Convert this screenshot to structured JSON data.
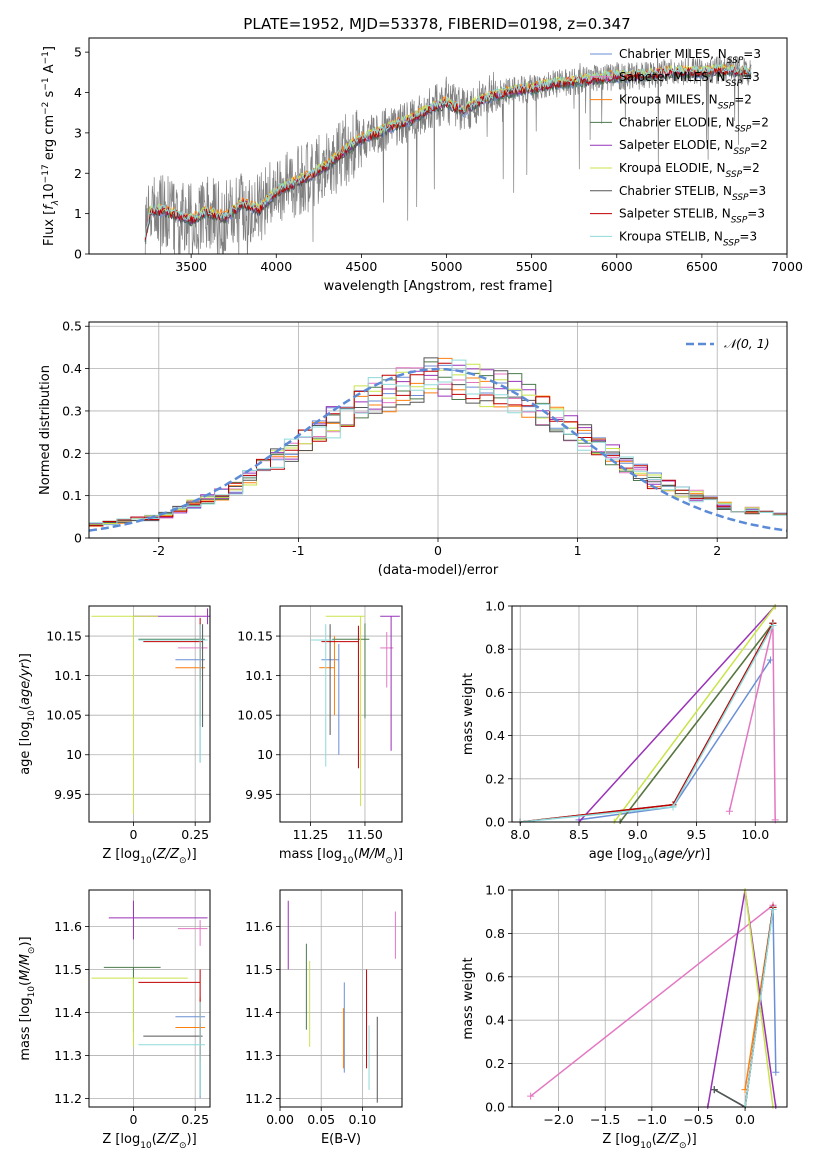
{
  "figure_title": "PLATE=1952, MJD=53378, FIBERID=0198, z=0.347",
  "colors": {
    "chabrier_miles": "#6a8fd6",
    "salpeter_miles": "#e377c2",
    "kroupa_miles": "#ff7f0e",
    "chabrier_elodie": "#4c7a4c",
    "salpeter_elodie": "#9932b8",
    "kroupa_elodie": "#c9e44a",
    "chabrier_stelib": "#555555",
    "salpeter_stelib": "#c00000",
    "kroupa_stelib": "#8fdada",
    "data": "#808080",
    "normal": "#5b8bd6"
  },
  "chart_data": [
    {
      "id": "spectrum",
      "type": "line",
      "title": "PLATE=1952, MJD=53378, FIBERID=0198, z=0.347",
      "xlabel": "wavelength [Angstrom, rest frame]",
      "ylabel": "Flux [f_λ 10^-17 erg cm^-2 s^-1 A^-1]",
      "xlim": [
        2900,
        7000
      ],
      "ylim": [
        0,
        5.35
      ],
      "xticks": [
        3500,
        4000,
        4500,
        5000,
        5500,
        6000,
        6500,
        7000
      ],
      "yticks": [
        0,
        1,
        2,
        3,
        4,
        5
      ],
      "legend": {
        "placement": "upper right",
        "entries": [
          {
            "base": "Chabrier MILES, N",
            "sub": "SSP",
            "suffix": "=3",
            "color_key": "chabrier_miles"
          },
          {
            "base": "Salpeter MILES, N",
            "sub": "SSP",
            "suffix": "=3",
            "color_key": "salpeter_miles"
          },
          {
            "base": "Kroupa MILES, N",
            "sub": "SSP",
            "suffix": "=2",
            "color_key": "kroupa_miles"
          },
          {
            "base": "Chabrier ELODIE, N",
            "sub": "SSP",
            "suffix": "=2",
            "color_key": "chabrier_elodie"
          },
          {
            "base": "Salpeter ELODIE, N",
            "sub": "SSP",
            "suffix": "=2",
            "color_key": "salpeter_elodie"
          },
          {
            "base": "Kroupa ELODIE, N",
            "sub": "SSP",
            "suffix": "=2",
            "color_key": "kroupa_elodie"
          },
          {
            "base": "Chabrier STELIB, N",
            "sub": "SSP",
            "suffix": "=3",
            "color_key": "chabrier_stelib"
          },
          {
            "base": "Salpeter STELIB, N",
            "sub": "SSP",
            "suffix": "=3",
            "color_key": "salpeter_stelib"
          },
          {
            "base": "Kroupa STELIB, N",
            "sub": "SSP",
            "suffix": "=3",
            "color_key": "kroupa_stelib"
          }
        ]
      },
      "continuum": {
        "x": [
          3230,
          3260,
          3300,
          3400,
          3500,
          3600,
          3700,
          3800,
          3900,
          4000,
          4100,
          4200,
          4300,
          4400,
          4500,
          4600,
          4700,
          4800,
          4900,
          5000,
          5100,
          5200,
          5300,
          5400,
          5500,
          5600,
          5700,
          5800,
          5900,
          6000,
          6100,
          6200,
          6300,
          6400,
          6500,
          6600,
          6700,
          6790
        ],
        "y": [
          0.4,
          1.05,
          1.1,
          1.0,
          0.85,
          1.05,
          0.9,
          1.25,
          1.1,
          1.55,
          1.75,
          1.95,
          2.2,
          2.55,
          2.85,
          3.0,
          3.2,
          3.35,
          3.6,
          3.75,
          3.55,
          3.8,
          3.95,
          4.05,
          4.1,
          4.2,
          4.25,
          4.3,
          4.35,
          4.4,
          4.4,
          4.45,
          4.5,
          4.5,
          4.5,
          4.55,
          4.55,
          4.5
        ]
      }
    },
    {
      "id": "residuals",
      "type": "step",
      "xlabel": "(data-model)/error",
      "ylabel": "Normed distribution",
      "xlim": [
        -2.5,
        2.5
      ],
      "ylim": [
        0,
        0.51
      ],
      "xticks": [
        -2,
        -1,
        0,
        1,
        2
      ],
      "yticks": [
        0.0,
        0.1,
        0.2,
        0.3,
        0.4,
        0.5
      ],
      "grid": true,
      "legend": {
        "placement": "upper right",
        "label": "𝒩(0, 1)"
      },
      "bin_width": 0.1,
      "profile": {
        "x": [
          -2.5,
          -2.0,
          -1.5,
          -1.0,
          -0.5,
          0.0,
          0.5,
          1.0,
          1.5,
          2.0,
          2.5
        ],
        "y": [
          0.03,
          0.05,
          0.11,
          0.22,
          0.33,
          0.38,
          0.35,
          0.25,
          0.14,
          0.08,
          0.05
        ]
      },
      "normal_curve": {
        "mean": 0,
        "sigma": 1
      }
    },
    {
      "id": "age_vs_Z",
      "type": "errorbar",
      "xlabel": "Z [log10(Z/Z⊙)]",
      "ylabel": "age  [log10(age/yr)]",
      "xlim": [
        -0.18,
        0.31
      ],
      "ylim": [
        9.915,
        10.188
      ],
      "xticks": [
        0.0,
        0.25
      ],
      "yticks": [
        9.95,
        10.0,
        10.05,
        10.1,
        10.15
      ],
      "grid": true,
      "points": [
        {
          "c": "chabrier_miles",
          "x": 0.27,
          "y": 10.12,
          "xe": [
            0.1,
            0.02
          ],
          "ye": [
            0.13,
            0.02
          ]
        },
        {
          "c": "salpeter_miles",
          "x": 0.27,
          "y": 10.135,
          "xe": [
            0.09,
            0.03
          ],
          "ye": [
            0.03,
            0.02
          ]
        },
        {
          "c": "kroupa_miles",
          "x": 0.27,
          "y": 10.11,
          "xe": [
            0.1,
            0.02
          ],
          "ye": [
            0.06,
            0.04
          ]
        },
        {
          "c": "chabrier_elodie",
          "x": 0.27,
          "y": 10.146,
          "xe": [
            0.25,
            0.02
          ],
          "ye": [
            0.11,
            0.02
          ]
        },
        {
          "c": "salpeter_elodie",
          "x": 0.3,
          "y": 10.175,
          "xe": [
            0.3,
            0.01
          ],
          "ye": [
            0.01,
            0.01
          ]
        },
        {
          "c": "kroupa_elodie",
          "x": 0.0,
          "y": 10.175,
          "xe": [
            0.17,
            0.1
          ],
          "ye": [
            0.25,
            0.0
          ]
        },
        {
          "c": "chabrier_stelib",
          "x": 0.28,
          "y": 10.145,
          "xe": [
            0.2,
            0.02
          ],
          "ye": [
            0.11,
            0.02
          ]
        },
        {
          "c": "salpeter_stelib",
          "x": 0.27,
          "y": 10.143,
          "xe": [
            0.23,
            0.01
          ],
          "ye": [
            0.05,
            0.03
          ]
        },
        {
          "c": "kroupa_stelib",
          "x": 0.27,
          "y": 10.145,
          "xe": [
            0.25,
            0.03
          ],
          "ye": [
            0.155,
            0.02
          ]
        }
      ]
    },
    {
      "id": "age_vs_mass",
      "type": "errorbar",
      "xlabel": "mass [log10(M/M⊙)]",
      "xlim": [
        11.11,
        11.67
      ],
      "ylim": [
        9.915,
        10.188
      ],
      "xticks": [
        11.25,
        11.5
      ],
      "xticklabels": [
        "11.25",
        "11.50"
      ],
      "yticks": [
        9.95,
        10.0,
        10.05,
        10.1,
        10.15
      ],
      "grid": true,
      "points": [
        {
          "c": "chabrier_miles",
          "x": 11.38,
          "y": 10.12,
          "xe": [
            0.08,
            0.0
          ],
          "ye": [
            0.12,
            0.02
          ]
        },
        {
          "c": "salpeter_miles",
          "x": 11.6,
          "y": 10.135,
          "xe": [
            0.03,
            0.03
          ],
          "ye": [
            0.05,
            0.02
          ]
        },
        {
          "c": "kroupa_miles",
          "x": 11.36,
          "y": 10.11,
          "xe": [
            0.07,
            0.0
          ],
          "ye": [
            0.06,
            0.04
          ]
        },
        {
          "c": "chabrier_elodie",
          "x": 11.5,
          "y": 10.146,
          "xe": [
            0.15,
            0.02
          ],
          "ye": [
            0.1,
            0.02
          ]
        },
        {
          "c": "salpeter_elodie",
          "x": 11.62,
          "y": 10.175,
          "xe": [
            0.05,
            0.04
          ],
          "ye": [
            0.17,
            0.0
          ]
        },
        {
          "c": "kroupa_elodie",
          "x": 11.48,
          "y": 10.175,
          "xe": [
            0.16,
            0.02
          ],
          "ye": [
            0.24,
            0.0
          ]
        },
        {
          "c": "chabrier_stelib",
          "x": 11.34,
          "y": 10.145,
          "xe": [
            0.07,
            0.0
          ],
          "ye": [
            0.12,
            0.02
          ]
        },
        {
          "c": "salpeter_stelib",
          "x": 11.47,
          "y": 10.143,
          "xe": [
            0.17,
            0.0
          ],
          "ye": [
            0.16,
            0.02
          ]
        },
        {
          "c": "kroupa_stelib",
          "x": 11.32,
          "y": 10.145,
          "xe": [
            0.07,
            0.04
          ],
          "ye": [
            0.16,
            0.02
          ]
        }
      ]
    },
    {
      "id": "mass_weight_vs_age",
      "type": "line",
      "xlabel": "age  [log10(age/yr)]",
      "ylabel": "mass weight",
      "xlim": [
        7.93,
        10.27
      ],
      "ylim": [
        0,
        1.0
      ],
      "xticks": [
        8.0,
        8.5,
        9.0,
        9.5,
        10.0
      ],
      "xticklabels": [
        "8.0",
        "8.5",
        "9.0",
        "9.5",
        "10.0"
      ],
      "yticks": [
        0.0,
        0.2,
        0.4,
        0.6,
        0.8,
        1.0
      ],
      "grid": true,
      "series": [
        {
          "c": "chabrier_miles",
          "x": [
            8.5,
            9.3,
            10.13
          ],
          "y": [
            0.01,
            0.07,
            0.75
          ]
        },
        {
          "c": "salpeter_miles",
          "x": [
            9.78,
            10.15,
            10.17
          ],
          "y": [
            0.05,
            0.91,
            0.01
          ]
        },
        {
          "c": "kroupa_miles",
          "x": [
            8.85,
            10.15
          ],
          "y": [
            0.0,
            0.92
          ]
        },
        {
          "c": "chabrier_elodie",
          "x": [
            8.85,
            10.15
          ],
          "y": [
            0.0,
            0.92
          ]
        },
        {
          "c": "salpeter_elodie",
          "x": [
            8.5,
            10.17
          ],
          "y": [
            0.0,
            1.0
          ]
        },
        {
          "c": "kroupa_elodie",
          "x": [
            8.8,
            10.17
          ],
          "y": [
            0.0,
            1.0
          ]
        },
        {
          "c": "chabrier_stelib",
          "x": [
            8.0,
            9.3,
            10.15
          ],
          "y": [
            0.0,
            0.08,
            0.92
          ]
        },
        {
          "c": "salpeter_stelib",
          "x": [
            8.0,
            9.3,
            10.15
          ],
          "y": [
            0.0,
            0.08,
            0.92
          ]
        },
        {
          "c": "kroupa_stelib",
          "x": [
            8.0,
            9.3,
            10.15
          ],
          "y": [
            0.0,
            0.07,
            0.91
          ]
        }
      ]
    },
    {
      "id": "mass_vs_Z",
      "type": "errorbar",
      "xlabel": "Z [log10(Z/Z⊙)]",
      "ylabel": "mass [log10(M/M⊙)]",
      "xlim": [
        -0.18,
        0.31
      ],
      "ylim": [
        11.18,
        11.685
      ],
      "xticks": [
        0.0,
        0.25
      ],
      "yticks": [
        11.2,
        11.3,
        11.4,
        11.5,
        11.6
      ],
      "grid": true,
      "points": [
        {
          "c": "chabrier_miles",
          "x": 0.27,
          "y": 11.39,
          "xe": [
            0.1,
            0.02
          ],
          "ye": [
            0.19,
            0.04
          ]
        },
        {
          "c": "salpeter_miles",
          "x": 0.27,
          "y": 11.595,
          "xe": [
            0.09,
            0.03
          ],
          "ye": [
            0.04,
            0.02
          ]
        },
        {
          "c": "kroupa_miles",
          "x": 0.27,
          "y": 11.365,
          "xe": [
            0.1,
            0.02
          ],
          "ye": [
            0.08,
            0.07
          ]
        },
        {
          "c": "chabrier_elodie",
          "x": 0.0,
          "y": 11.505,
          "xe": [
            0.12,
            0.11
          ],
          "ye": [
            0.15,
            0.0
          ]
        },
        {
          "c": "salpeter_elodie",
          "x": 0.0,
          "y": 11.62,
          "xe": [
            0.1,
            0.3
          ],
          "ye": [
            0.05,
            0.04
          ]
        },
        {
          "c": "kroupa_elodie",
          "x": 0.0,
          "y": 11.48,
          "xe": [
            0.17,
            0.22
          ],
          "ye": [
            0.16,
            0.0
          ]
        },
        {
          "c": "chabrier_stelib",
          "x": 0.27,
          "y": 11.345,
          "xe": [
            0.23,
            0.01
          ],
          "ye": [
            0.14,
            0.03
          ]
        },
        {
          "c": "salpeter_stelib",
          "x": 0.27,
          "y": 11.47,
          "xe": [
            0.25,
            0.0
          ],
          "ye": [
            0.17,
            0.03
          ]
        },
        {
          "c": "kroupa_stelib",
          "x": 0.27,
          "y": 11.325,
          "xe": [
            0.25,
            0.02
          ],
          "ye": [
            0.12,
            0.1
          ]
        }
      ]
    },
    {
      "id": "mass_vs_ebv",
      "type": "errorbar",
      "xlabel": "E(B-V)",
      "xlim": [
        0.0,
        0.148
      ],
      "ylim": [
        11.18,
        11.685
      ],
      "xticks": [
        0.0,
        0.05,
        0.1
      ],
      "xticklabels": [
        "0.00",
        "0.05",
        "0.10"
      ],
      "yticks": [
        11.2,
        11.3,
        11.4,
        11.5,
        11.6
      ],
      "grid": true,
      "points": [
        {
          "c": "chabrier_miles",
          "x": 0.078,
          "y": 11.39,
          "xe": [
            0,
            0
          ],
          "ye": [
            0.13,
            0.08
          ]
        },
        {
          "c": "salpeter_miles",
          "x": 0.14,
          "y": 11.585,
          "xe": [
            0,
            0
          ],
          "ye": [
            0.06,
            0.05
          ]
        },
        {
          "c": "kroupa_miles",
          "x": 0.077,
          "y": 11.36,
          "xe": [
            0,
            0
          ],
          "ye": [
            0.09,
            0.05
          ]
        },
        {
          "c": "chabrier_elodie",
          "x": 0.032,
          "y": 11.46,
          "xe": [
            0,
            0
          ],
          "ye": [
            0.1,
            0.1
          ]
        },
        {
          "c": "salpeter_elodie",
          "x": 0.01,
          "y": 11.58,
          "xe": [
            0,
            0
          ],
          "ye": [
            0.08,
            0.08
          ]
        },
        {
          "c": "kroupa_elodie",
          "x": 0.036,
          "y": 11.42,
          "xe": [
            0,
            0
          ],
          "ye": [
            0.1,
            0.1
          ]
        },
        {
          "c": "chabrier_stelib",
          "x": 0.118,
          "y": 11.29,
          "xe": [
            0,
            0
          ],
          "ye": [
            0.1,
            0.1
          ]
        },
        {
          "c": "salpeter_stelib",
          "x": 0.105,
          "y": 11.37,
          "xe": [
            0,
            0
          ],
          "ye": [
            0.1,
            0.13
          ]
        },
        {
          "c": "kroupa_stelib",
          "x": 0.108,
          "y": 11.31,
          "xe": [
            0,
            0
          ],
          "ye": [
            0.09,
            0.06
          ]
        }
      ]
    },
    {
      "id": "mass_weight_vs_Z",
      "type": "line",
      "xlabel": "Z [log10(Z/Z⊙)]",
      "ylabel": "mass weight",
      "xlim": [
        -2.5,
        0.45
      ],
      "ylim": [
        0,
        1.0
      ],
      "xticks": [
        -2.0,
        -1.5,
        -1.0,
        -0.5,
        0.0
      ],
      "xticklabels": [
        "−2.0",
        "−1.5",
        "−1.0",
        "−0.5",
        "0.0"
      ],
      "yticks": [
        0.0,
        0.2,
        0.4,
        0.6,
        0.8,
        1.0
      ],
      "grid": true,
      "series": [
        {
          "c": "chabrier_miles",
          "x": [
            -0.33,
            0.0,
            0.3,
            0.33
          ],
          "y": [
            0.08,
            0.0,
            0.92,
            0.16
          ]
        },
        {
          "c": "salpeter_miles",
          "x": [
            -2.3,
            0.3
          ],
          "y": [
            0.05,
            0.93
          ]
        },
        {
          "c": "kroupa_miles",
          "x": [
            0.0,
            0.3
          ],
          "y": [
            0.08,
            0.92
          ]
        },
        {
          "c": "chabrier_elodie",
          "x": [
            -0.33,
            0.0,
            0.3
          ],
          "y": [
            0.08,
            0.0,
            0.92
          ]
        },
        {
          "c": "salpeter_elodie",
          "x": [
            -0.4,
            0.0,
            0.33
          ],
          "y": [
            0.0,
            1.0,
            0.0
          ]
        },
        {
          "c": "kroupa_elodie",
          "x": [
            0.0,
            0.3
          ],
          "y": [
            1.0,
            0.0
          ]
        },
        {
          "c": "chabrier_stelib",
          "x": [
            -0.33,
            0.0,
            0.3
          ],
          "y": [
            0.08,
            0.0,
            0.92
          ]
        },
        {
          "c": "salpeter_stelib",
          "x": [
            0.0,
            0.3
          ],
          "y": [
            0.0,
            0.92
          ]
        },
        {
          "c": "kroupa_stelib",
          "x": [
            0.0,
            0.3
          ],
          "y": [
            0.0,
            0.91
          ]
        }
      ]
    }
  ]
}
